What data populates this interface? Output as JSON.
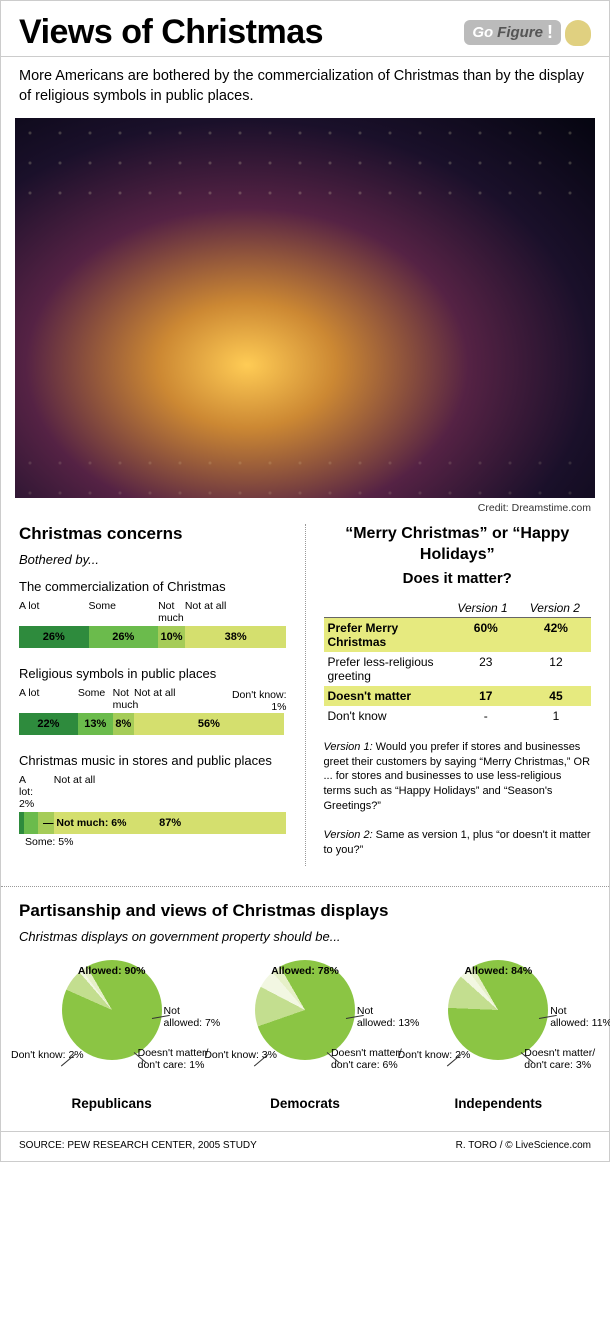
{
  "header": {
    "title": "Views of Christmas",
    "badge_go": "Go",
    "badge_figure": "Figure",
    "badge_bang": "!"
  },
  "subtitle": "More Americans are bothered by the commercialization of Christmas than by the display of religious symbols in public places.",
  "credit": "Credit: Dreamstime.com",
  "concerns": {
    "title": "Christmas concerns",
    "subtitle": "Bothered by...",
    "colors": {
      "alot": "#2e8b3d",
      "some": "#6bbb4c",
      "notmuch": "#a5cc58",
      "notatall": "#d4df6e"
    },
    "items": [
      {
        "label": "The commercialization of Christmas",
        "segments": [
          {
            "label": "A lot",
            "value": 26,
            "color": "#2e8b3d",
            "text": "26%"
          },
          {
            "label": "Some",
            "value": 26,
            "color": "#6bbb4c",
            "text": "26%"
          },
          {
            "label": "Not much",
            "value": 10,
            "color": "#a5cc58",
            "text": "10%"
          },
          {
            "label": "Not at all",
            "value": 38,
            "color": "#d4df6e",
            "text": "38%"
          }
        ],
        "extras": []
      },
      {
        "label": "Religious symbols in public places",
        "segments": [
          {
            "label": "A lot",
            "value": 22,
            "color": "#2e8b3d",
            "text": "22%"
          },
          {
            "label": "Some",
            "value": 13,
            "color": "#6bbb4c",
            "text": "13%"
          },
          {
            "label": "Not much",
            "value": 8,
            "color": "#a5cc58",
            "text": "8%"
          },
          {
            "label": "Not at all",
            "value": 56,
            "color": "#d4df6e",
            "text": "56%"
          }
        ],
        "extras": [
          {
            "label": "Don't know:",
            "text": "1%",
            "side": "right"
          }
        ]
      },
      {
        "label": "Christmas music in stores and public places",
        "segments": [
          {
            "label": "A lot: 2%",
            "value": 2,
            "color": "#2e8b3d",
            "text": ""
          },
          {
            "label": "",
            "value": 5,
            "color": "#6bbb4c",
            "text": ""
          },
          {
            "label": "",
            "value": 6,
            "color": "#a5cc58",
            "text": ""
          },
          {
            "label": "Not at all",
            "value": 87,
            "color": "#d4df6e",
            "text": "87%"
          }
        ],
        "extras": [
          {
            "label": "— Not much: 6%",
            "text": "",
            "side": "overlay"
          },
          {
            "label": "Some: 5%",
            "text": "",
            "side": "below"
          }
        ]
      }
    ]
  },
  "preferences": {
    "title1": "“Merry Christmas” or “Happy Holidays”",
    "title2": "Does it matter?",
    "col1": "Version 1",
    "col2": "Version 2",
    "rows": [
      {
        "label": "Prefer Merry Christmas",
        "v1": "60%",
        "v2": "42%",
        "hl": true
      },
      {
        "label": "Prefer less-religious greeting",
        "v1": "23",
        "v2": "12",
        "hl": false
      },
      {
        "label": "Doesn't matter",
        "v1": "17",
        "v2": "45",
        "hl": true
      },
      {
        "label": "Don't know",
        "v1": "-",
        "v2": "1",
        "hl": false
      }
    ],
    "note1_label": "Version 1:",
    "note1": " Would you prefer if stores and businesses greet their customers by saying “Merry Christmas,” OR ... for stores and businesses to use less-religious terms such as “Happy Holidays” and “Season's Greetings?”",
    "note2_label": "Version 2:",
    "note2": " Same as version 1, plus “or doesn't it matter to you?”"
  },
  "partisanship": {
    "title": "Partisanship and views of Christmas displays",
    "subtitle": "Christmas displays on government property should be...",
    "pie_colors": {
      "allowed": "#8bc544",
      "notallowed": "#c3de8f",
      "dontknow": "#e6f0c8",
      "doesntmatter": "#f2f7e2"
    },
    "groups": [
      {
        "name": "Republicans",
        "allowed": 90,
        "notallowed": 7,
        "dontknow": 2,
        "doesntmatter": 1,
        "allowed_t": "Allowed: 90%",
        "notallowed_t": "Not\nallowed: 7%",
        "dontknow_t": "Don't know: 2%",
        "doesntmatter_t": "Doesn't matter/\ndon't care: 1%"
      },
      {
        "name": "Democrats",
        "allowed": 78,
        "notallowed": 13,
        "dontknow": 3,
        "doesntmatter": 6,
        "allowed_t": "Allowed: 78%",
        "notallowed_t": "Not\nallowed: 13%",
        "dontknow_t": "Don't know: 3%",
        "doesntmatter_t": "Doesn't matter/\ndon't care: 6%"
      },
      {
        "name": "Independents",
        "allowed": 84,
        "notallowed": 11,
        "dontknow": 2,
        "doesntmatter": 3,
        "allowed_t": "Allowed: 84%",
        "notallowed_t": "Not\nallowed: 11%",
        "dontknow_t": "Don't know: 2%",
        "doesntmatter_t": "Doesn't matter/\ndon't care: 3%"
      }
    ]
  },
  "footer": {
    "source": "SOURCE: PEW RESEARCH CENTER, 2005 STUDY",
    "attribution": "R. TORO / © LiveScience.com"
  }
}
